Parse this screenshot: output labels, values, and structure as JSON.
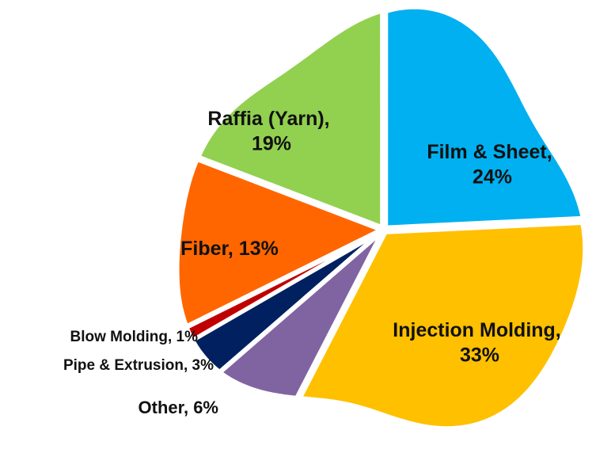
{
  "chart_data": {
    "type": "pie",
    "values": [
      24,
      33,
      6,
      3,
      1,
      13,
      19
    ],
    "value_labels": [
      "Film & Sheet, 24%",
      "Injection Molding, 33%",
      "Other, 6%",
      "Pipe & Extrusion, 3%",
      "Blow Molding, 1%",
      "Fiber, 13%",
      "Raffia (Yarn), 19%"
    ],
    "colors": [
      "#00b0f0",
      "#ffc000",
      "#8064a2",
      "#002060",
      "#c00000",
      "#ff6600",
      "#92d050"
    ]
  }
}
